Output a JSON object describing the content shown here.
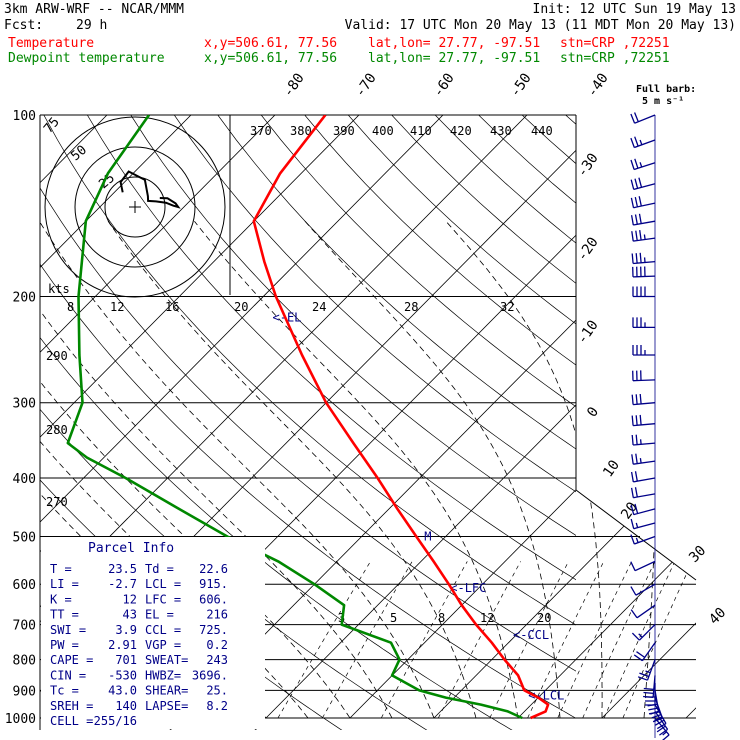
{
  "header": {
    "model": "3km ARW-WRF -- NCAR/MMM",
    "init": "Init: 12 UTC Sun 19 May 13",
    "fcst_label": "Fcst:",
    "fcst_value": "29 h",
    "valid": "Valid: 17 UTC Mon 20 May 13 (11 MDT Mon 20 May 13)",
    "temp_label": "Temperature",
    "dew_label": "Dewpoint temperature",
    "xy": "x,y=506.61, 77.56",
    "latlon": "lat,lon= 27.77, -97.51",
    "stn": "stn=CRP ,72251"
  },
  "colors": {
    "temperature": "#ff0000",
    "dewpoint": "#008800",
    "parcel": "#000088",
    "axes": "#000000"
  },
  "barb_legend": {
    "line1": "Full barb:",
    "line2": "5 m s⁻¹"
  },
  "hodograph": {
    "units_label": "kts",
    "ring_labels": [
      "75",
      "50",
      "25"
    ]
  },
  "parcel_info": {
    "title": "Parcel Info",
    "rows": [
      [
        "T  =",
        "23.5",
        "Td =",
        "22.6"
      ],
      [
        "LI =",
        "-2.7",
        "LCL =",
        "915."
      ],
      [
        "K  =",
        "12",
        "LFC =",
        "606."
      ],
      [
        "TT =",
        "43",
        "EL =",
        "216"
      ],
      [
        "SWI =",
        "3.9",
        "CCL =",
        "725."
      ],
      [
        "PW =",
        "2.91",
        "VGP =",
        "0.2"
      ],
      [
        "CAPE =",
        "701",
        "SWEAT=",
        "243"
      ],
      [
        "CIN =",
        "-530",
        "HWBZ=",
        "3696."
      ],
      [
        "Tc =",
        "43.0",
        "SHEAR=",
        "25."
      ],
      [
        "SREH =",
        "140",
        "LAPSE=",
        "8.2"
      ],
      [
        "CELL =",
        "255/16",
        "",
        ""
      ]
    ]
  },
  "level_markers": {
    "el": "<-EL",
    "lfc": "<-LFC",
    "ccl": "<-CCL",
    "lcl": "<-LCL",
    "m": "M"
  },
  "chart_data": {
    "type": "line",
    "title": "",
    "xlabel": "",
    "ylabel": "",
    "pressure_ticks": [
      100,
      200,
      300,
      400,
      500,
      600,
      700,
      800,
      900,
      1000
    ],
    "isotherm_labels": [
      "-80",
      "-70",
      "-60",
      "-50",
      "-40",
      "-30",
      "-20",
      "-10",
      "0",
      "10",
      "20",
      "30",
      "40"
    ],
    "theta_labels": [
      "370",
      "380",
      "390",
      "400",
      "410",
      "420",
      "430",
      "440"
    ],
    "mixing_ratio_labels_upper": [
      "8",
      "12",
      "16",
      "20",
      "24",
      "28",
      "32"
    ],
    "mixing_ratio_labels_lower": [
      "3",
      "5",
      "8",
      "12",
      "20"
    ],
    "side_labels": [
      "290",
      "280",
      "270"
    ],
    "series": [
      {
        "name": "Temperature",
        "points": [
          [
            1000,
            21.5
          ],
          [
            975,
            22.5
          ],
          [
            950,
            22.0
          ],
          [
            925,
            20.0
          ],
          [
            900,
            17.5
          ],
          [
            850,
            15.0
          ],
          [
            800,
            11.5
          ],
          [
            750,
            8.0
          ],
          [
            700,
            4.0
          ],
          [
            650,
            0.0
          ],
          [
            600,
            -4.0
          ],
          [
            550,
            -8.5
          ],
          [
            500,
            -13.5
          ],
          [
            450,
            -19.0
          ],
          [
            400,
            -25.0
          ],
          [
            350,
            -32.0
          ],
          [
            300,
            -40.0
          ],
          [
            250,
            -48.5
          ],
          [
            200,
            -58.5
          ],
          [
            175,
            -64.0
          ],
          [
            150,
            -70.0
          ],
          [
            125,
            -72.5
          ],
          [
            100,
            -74.0
          ]
        ]
      },
      {
        "name": "Dewpoint temperature",
        "points": [
          [
            1000,
            20.5
          ],
          [
            975,
            18.0
          ],
          [
            950,
            14.0
          ],
          [
            925,
            9.0
          ],
          [
            900,
            5.0
          ],
          [
            850,
            0.0
          ],
          [
            800,
            -1.0
          ],
          [
            750,
            -4.0
          ],
          [
            700,
            -12.0
          ],
          [
            650,
            -14.0
          ],
          [
            600,
            -20.0
          ],
          [
            550,
            -27.0
          ],
          [
            500,
            -36.0
          ],
          [
            450,
            -45.0
          ],
          [
            400,
            -55.0
          ],
          [
            370,
            -62.0
          ],
          [
            350,
            -66.0
          ],
          [
            300,
            -69.0
          ],
          [
            250,
            -75.0
          ],
          [
            200,
            -82.0
          ],
          [
            150,
            -90.0
          ],
          [
            125,
            -93.0
          ],
          [
            100,
            -95.0
          ]
        ]
      }
    ],
    "wind_profile": [
      [
        1000,
        140,
        16
      ],
      [
        975,
        145,
        22
      ],
      [
        950,
        150,
        28
      ],
      [
        925,
        160,
        32
      ],
      [
        900,
        170,
        32
      ],
      [
        875,
        180,
        30
      ],
      [
        850,
        185,
        28
      ],
      [
        800,
        200,
        24
      ],
      [
        750,
        215,
        20
      ],
      [
        700,
        225,
        14
      ],
      [
        650,
        235,
        10
      ],
      [
        600,
        240,
        10
      ],
      [
        550,
        245,
        12
      ],
      [
        500,
        250,
        14
      ],
      [
        475,
        255,
        16
      ],
      [
        450,
        255,
        18
      ],
      [
        425,
        260,
        20
      ],
      [
        400,
        260,
        22
      ],
      [
        375,
        262,
        24
      ],
      [
        350,
        265,
        26
      ],
      [
        325,
        265,
        28
      ],
      [
        300,
        265,
        30
      ],
      [
        275,
        268,
        32
      ],
      [
        250,
        270,
        34
      ],
      [
        225,
        270,
        36
      ],
      [
        200,
        270,
        38
      ],
      [
        185,
        268,
        38
      ],
      [
        175,
        265,
        36
      ],
      [
        160,
        262,
        34
      ],
      [
        150,
        260,
        32
      ],
      [
        140,
        258,
        30
      ],
      [
        130,
        255,
        28
      ],
      [
        120,
        252,
        26
      ],
      [
        110,
        250,
        24
      ],
      [
        100,
        248,
        22
      ]
    ],
    "hodograph_trace": [
      [
        140,
        16
      ],
      [
        150,
        24
      ],
      [
        170,
        30
      ],
      [
        200,
        24
      ],
      [
        230,
        14
      ],
      [
        245,
        12
      ],
      [
        255,
        18
      ],
      [
        262,
        26
      ],
      [
        268,
        32
      ],
      [
        270,
        36
      ],
      [
        265,
        34
      ],
      [
        255,
        28
      ],
      [
        250,
        22
      ]
    ]
  }
}
